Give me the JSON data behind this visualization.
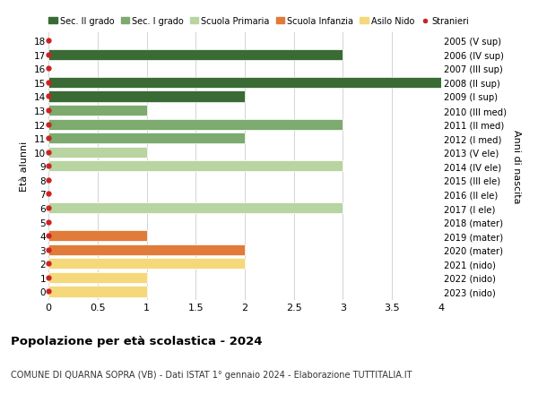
{
  "ages": [
    18,
    17,
    16,
    15,
    14,
    13,
    12,
    11,
    10,
    9,
    8,
    7,
    6,
    5,
    4,
    3,
    2,
    1,
    0
  ],
  "years": [
    "2005 (V sup)",
    "2006 (IV sup)",
    "2007 (III sup)",
    "2008 (II sup)",
    "2009 (I sup)",
    "2010 (III med)",
    "2011 (II med)",
    "2012 (I med)",
    "2013 (V ele)",
    "2014 (IV ele)",
    "2015 (III ele)",
    "2016 (II ele)",
    "2017 (I ele)",
    "2018 (mater)",
    "2019 (mater)",
    "2020 (mater)",
    "2021 (nido)",
    "2022 (nido)",
    "2023 (nido)"
  ],
  "values": [
    0,
    3,
    0,
    4,
    2,
    1,
    3,
    2,
    1,
    3,
    0,
    0,
    3,
    0,
    1,
    2,
    2,
    1,
    1
  ],
  "colors": [
    "#3a6b35",
    "#3a6b35",
    "#3a6b35",
    "#3a6b35",
    "#3a6b35",
    "#7daa6f",
    "#7daa6f",
    "#7daa6f",
    "#b8d4a0",
    "#b8d4a0",
    "#b8d4a0",
    "#b8d4a0",
    "#b8d4a0",
    "#e07b39",
    "#e07b39",
    "#e07b39",
    "#f5d87a",
    "#f5d87a",
    "#f5d87a"
  ],
  "stranieri_dots": [
    18,
    17,
    16,
    15,
    14,
    13,
    12,
    11,
    10,
    9,
    8,
    7,
    6,
    5,
    4,
    3,
    2,
    1,
    0
  ],
  "legend_labels": [
    "Sec. II grado",
    "Sec. I grado",
    "Scuola Primaria",
    "Scuola Infanzia",
    "Asilo Nido",
    "Stranieri"
  ],
  "legend_colors": [
    "#3a6b35",
    "#7daa6f",
    "#b8d4a0",
    "#e07b39",
    "#f5d87a",
    "#cc2222"
  ],
  "title": "Popolazione per età scolastica - 2024",
  "subtitle": "COMUNE DI QUARNA SOPRA (VB) - Dati ISTAT 1° gennaio 2024 - Elaborazione TUTTITALIA.IT",
  "ylabel_left": "Età alunni",
  "ylabel_right": "Anni di nascita",
  "xlim": [
    0,
    4.0
  ],
  "xticks": [
    0,
    0.5,
    1.0,
    1.5,
    2.0,
    2.5,
    3.0,
    3.5,
    4.0
  ],
  "background_color": "#ffffff",
  "bar_height": 0.78,
  "grid_color": "#cccccc"
}
